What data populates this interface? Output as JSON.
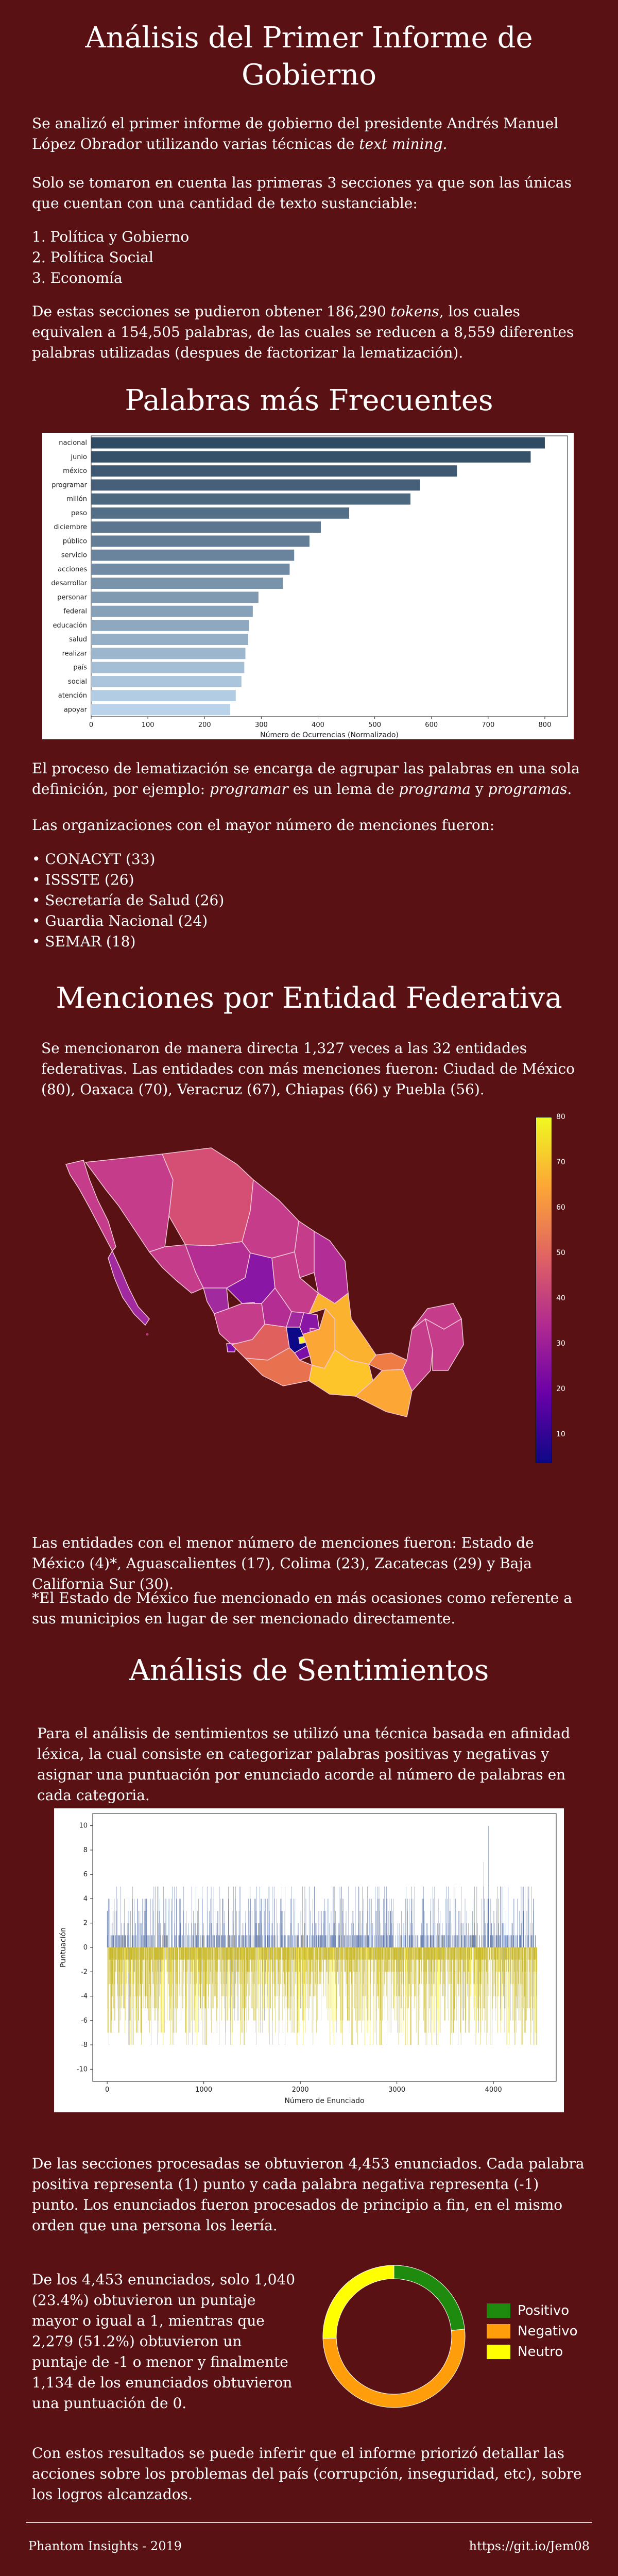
{
  "header": {
    "title": "Análisis del Primer Informe de Gobierno",
    "intro_1_a": "Se analizó el primer informe de gobierno del presidente Andrés Manuel López Obrador utilizando varias técnicas de ",
    "intro_1_em": "text mining.",
    "intro_2": "Solo se tomaron en cuenta las primeras 3 secciones ya que son las únicas que cuentan con una cantidad de texto sustanciable:",
    "sections": [
      "1. Política y Gobierno",
      "2. Política Social",
      "3. Economía"
    ],
    "intro_3_a": "De estas secciones se pudieron obtener 186,290 ",
    "intro_3_em": "tokens",
    "intro_3_b": ", los cuales equivalen a 154,505 palabras, de las cuales se reducen a 8,559 diferentes palabras utilizadas (despues de factorizar la lematización)."
  },
  "freq_section": {
    "title": "Palabras más Frecuentes",
    "text_1_a": "El proceso de lematización se encarga de agrupar las palabras en una sola definición, por ejemplo: ",
    "text_1_em1": "programar",
    "text_1_b": " es un lema de ",
    "text_1_em2": "programa",
    "text_1_c": " y ",
    "text_1_em3": "programas",
    "text_1_d": ".",
    "text_2": "Las organizaciones con el mayor número de menciones fueron:",
    "orgs": [
      "CONACYT (33)",
      "ISSSTE (26)",
      "Secretaría de Salud (26)",
      "Guardia Nacional (24)",
      "SEMAR (18)"
    ]
  },
  "states_section": {
    "title": "Menciones por Entidad Federativa",
    "text_1": "Se mencionaron de manera directa 1,327 veces a las 32 entidades federativas. Las entidades con más menciones fueron: Ciudad de México (80), Oaxaca (70), Veracruz (67), Chiapas (66) y Puebla (56).",
    "text_2": "Las entidades con el menor número de menciones fueron: Estado  de México (4)*, Aguascalientes (17), Colima (23), Zacatecas (29) y Baja California Sur (30).",
    "text_3": "*El Estado de México fue mencionado en más ocasiones como referente a sus municipios en lugar de ser mencionado directamente.",
    "colorbar_ticks": [
      "80",
      "70",
      "60",
      "50",
      "40",
      "30",
      "20",
      "10"
    ]
  },
  "sentiment_section": {
    "title": "Análisis de Sentimientos",
    "text_1": "Para el análisis de sentimientos se utilizó una técnica basada en afinidad léxica, la cual consiste en categorizar palabras positivas y negativas y asignar una puntuación por enunciado acorde al número de palabras en cada categoria.",
    "text_2": "De las secciones procesadas se obtuvieron 4,453 enunciados. Cada palabra positiva representa (1) punto y cada palabra negativa representa (-1) punto. Los enunciados fueron procesados de principio a fin, en el mismo orden que una persona los leería.",
    "text_3": "De los 4,453 enunciados, solo 1,040 (23.4%) obtuvieron un puntaje mayor o igual a 1, mientras que 2,279 (51.2%) obtuvieron un puntaje de -1 o menor y finalmente 1,134 de los enunciados obtuvieron una puntuación de 0.",
    "text_4": "Con estos resultados se puede inferir que el informe priorizó detallar las acciones sobre los problemas del país (corrupción, inseguridad, etc), sobre los logros alcanzados."
  },
  "footer": {
    "left": "Phantom Insights - 2019",
    "right": "https://git.io/Jem08"
  },
  "colors": {
    "background": "#5a1113",
    "bar_dark": "#2f4b63",
    "bar_light": "#b9d3ea",
    "positive": "#1e8a0e",
    "negative": "#ff9e0a",
    "neutral": "#ffff00"
  },
  "chart_data": [
    {
      "type": "bar",
      "orientation": "horizontal",
      "categories": [
        "nacional",
        "junio",
        "méxico",
        "programar",
        "millón",
        "peso",
        "diciembre",
        "público",
        "servicio",
        "acciones",
        "desarrollar",
        "personar",
        "federal",
        "educación",
        "salud",
        "realizar",
        "país",
        "social",
        "atención",
        "apoyar"
      ],
      "values": [
        800,
        775,
        645,
        580,
        563,
        455,
        405,
        385,
        358,
        350,
        338,
        295,
        285,
        278,
        277,
        272,
        270,
        265,
        255,
        245
      ],
      "xlabel": "Número de Ocurrencias (Normalizado)",
      "xlim": [
        0,
        840
      ],
      "xticks": [
        0,
        100,
        200,
        300,
        400,
        500,
        600,
        700,
        800
      ]
    },
    {
      "type": "pie",
      "style": "donut",
      "labels": [
        "Positivo",
        "Negativo",
        "Neutro"
      ],
      "values": [
        1040,
        2279,
        1134
      ]
    },
    {
      "type": "bar",
      "xlabel": "Número de Enunciado",
      "ylabel": "Puntuación",
      "xlim": [
        -150,
        4650
      ],
      "ylim": [
        -11,
        11
      ],
      "xticks": [
        0,
        1000,
        2000,
        3000,
        4000
      ],
      "yticks": [
        10,
        8,
        6,
        4,
        2,
        0,
        -2,
        -4,
        -6,
        -8,
        -10
      ],
      "count": 4453
    }
  ]
}
